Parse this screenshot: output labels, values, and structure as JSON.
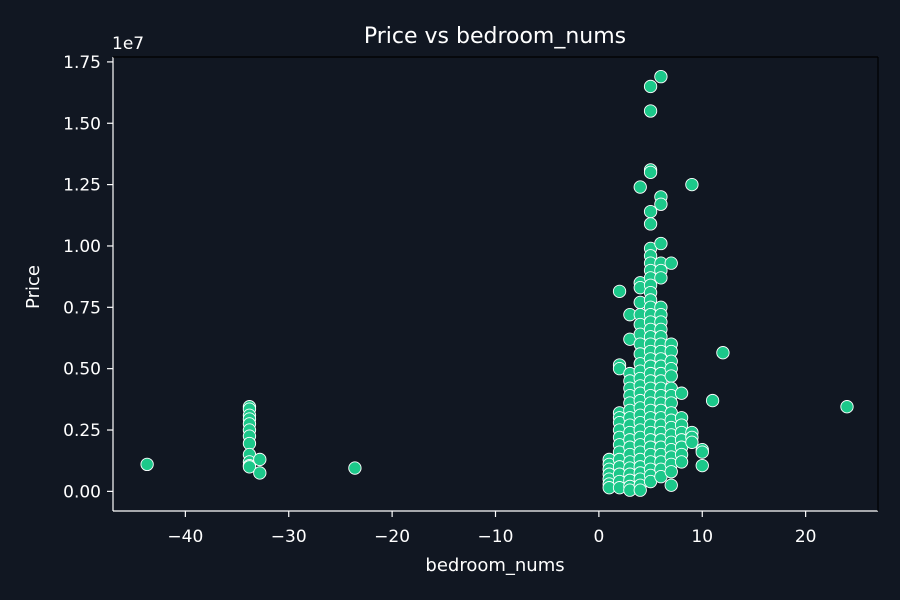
{
  "chart_data": {
    "type": "scatter",
    "title": "Price vs bedroom_nums",
    "xlabel": "bedroom_nums",
    "ylabel": "Price",
    "y_offset_label": "1e7",
    "xlim": [
      -47,
      27
    ],
    "ylim": [
      -800000,
      17700000
    ],
    "x_ticks": [
      -40,
      -30,
      -20,
      -10,
      0,
      10,
      20
    ],
    "x_tick_labels": [
      "−40",
      "−30",
      "−20",
      "−10",
      "0",
      "10",
      "20"
    ],
    "y_ticks": [
      0,
      2500000,
      5000000,
      7500000,
      10000000,
      12500000,
      15000000,
      17500000
    ],
    "y_tick_labels": [
      "0.00",
      "0.25",
      "0.50",
      "0.75",
      "1.00",
      "1.25",
      "1.50",
      "1.75"
    ],
    "grid": false,
    "colors": {
      "background": "#111722",
      "marker": "#1cc88a",
      "marker_edge": "#ffffff",
      "text": "#ffffff"
    },
    "series": [
      {
        "values": [
          [
            -43.7,
            1100000
          ],
          [
            -33.8,
            3450000
          ],
          [
            -33.8,
            3350000
          ],
          [
            -33.8,
            3100000
          ],
          [
            -33.8,
            2950000
          ],
          [
            -33.8,
            2750000
          ],
          [
            -33.8,
            2500000
          ],
          [
            -33.8,
            2250000
          ],
          [
            -33.8,
            1950000
          ],
          [
            -33.8,
            1500000
          ],
          [
            -33.8,
            1200000
          ],
          [
            -33.8,
            1050000
          ],
          [
            -33.8,
            1000000
          ],
          [
            -32.8,
            1300000
          ],
          [
            -32.8,
            750000
          ],
          [
            -23.6,
            950000
          ],
          [
            1,
            1300000
          ],
          [
            1,
            1100000
          ],
          [
            1,
            900000
          ],
          [
            1,
            700000
          ],
          [
            1,
            500000
          ],
          [
            1,
            300000
          ],
          [
            1,
            150000
          ],
          [
            2,
            8150000
          ],
          [
            2,
            5150000
          ],
          [
            2,
            5000000
          ],
          [
            2,
            3200000
          ],
          [
            2,
            3000000
          ],
          [
            2,
            2800000
          ],
          [
            2,
            2500000
          ],
          [
            2,
            2200000
          ],
          [
            2,
            1900000
          ],
          [
            2,
            1600000
          ],
          [
            2,
            1300000
          ],
          [
            2,
            1000000
          ],
          [
            2,
            700000
          ],
          [
            2,
            400000
          ],
          [
            2,
            150000
          ],
          [
            3,
            7200000
          ],
          [
            3,
            6200000
          ],
          [
            3,
            4800000
          ],
          [
            3,
            4500000
          ],
          [
            3,
            4200000
          ],
          [
            3,
            3900000
          ],
          [
            3,
            3600000
          ],
          [
            3,
            3300000
          ],
          [
            3,
            3000000
          ],
          [
            3,
            2700000
          ],
          [
            3,
            2400000
          ],
          [
            3,
            2100000
          ],
          [
            3,
            1800000
          ],
          [
            3,
            1500000
          ],
          [
            3,
            1200000
          ],
          [
            3,
            950000
          ],
          [
            3,
            700000
          ],
          [
            3,
            450000
          ],
          [
            3,
            200000
          ],
          [
            3,
            50000
          ],
          [
            4,
            12400000
          ],
          [
            4,
            8500000
          ],
          [
            4,
            8300000
          ],
          [
            4,
            7700000
          ],
          [
            4,
            7200000
          ],
          [
            4,
            6800000
          ],
          [
            4,
            6400000
          ],
          [
            4,
            6000000
          ],
          [
            4,
            5600000
          ],
          [
            4,
            5200000
          ],
          [
            4,
            4900000
          ],
          [
            4,
            4600000
          ],
          [
            4,
            4300000
          ],
          [
            4,
            4000000
          ],
          [
            4,
            3700000
          ],
          [
            4,
            3400000
          ],
          [
            4,
            3100000
          ],
          [
            4,
            2800000
          ],
          [
            4,
            2500000
          ],
          [
            4,
            2200000
          ],
          [
            4,
            1900000
          ],
          [
            4,
            1600000
          ],
          [
            4,
            1300000
          ],
          [
            4,
            1000000
          ],
          [
            4,
            750000
          ],
          [
            4,
            500000
          ],
          [
            4,
            250000
          ],
          [
            4,
            50000
          ],
          [
            5,
            16500000
          ],
          [
            5,
            15500000
          ],
          [
            5,
            13100000
          ],
          [
            5,
            13000000
          ],
          [
            5,
            11400000
          ],
          [
            5,
            10900000
          ],
          [
            5,
            9900000
          ],
          [
            5,
            9600000
          ],
          [
            5,
            9300000
          ],
          [
            5,
            9000000
          ],
          [
            5,
            8700000
          ],
          [
            5,
            8400000
          ],
          [
            5,
            8100000
          ],
          [
            5,
            7800000
          ],
          [
            5,
            7500000
          ],
          [
            5,
            7200000
          ],
          [
            5,
            6900000
          ],
          [
            5,
            6600000
          ],
          [
            5,
            6300000
          ],
          [
            5,
            6000000
          ],
          [
            5,
            5700000
          ],
          [
            5,
            5400000
          ],
          [
            5,
            5100000
          ],
          [
            5,
            4800000
          ],
          [
            5,
            4500000
          ],
          [
            5,
            4200000
          ],
          [
            5,
            3900000
          ],
          [
            5,
            3600000
          ],
          [
            5,
            3300000
          ],
          [
            5,
            3000000
          ],
          [
            5,
            2700000
          ],
          [
            5,
            2400000
          ],
          [
            5,
            2100000
          ],
          [
            5,
            1800000
          ],
          [
            5,
            1500000
          ],
          [
            5,
            1200000
          ],
          [
            5,
            900000
          ],
          [
            5,
            650000
          ],
          [
            5,
            400000
          ],
          [
            6,
            16900000
          ],
          [
            6,
            12000000
          ],
          [
            6,
            11700000
          ],
          [
            6,
            10100000
          ],
          [
            6,
            9300000
          ],
          [
            6,
            9000000
          ],
          [
            6,
            8700000
          ],
          [
            6,
            7500000
          ],
          [
            6,
            7200000
          ],
          [
            6,
            6900000
          ],
          [
            6,
            6600000
          ],
          [
            6,
            6300000
          ],
          [
            6,
            6000000
          ],
          [
            6,
            5700000
          ],
          [
            6,
            5400000
          ],
          [
            6,
            5100000
          ],
          [
            6,
            4800000
          ],
          [
            6,
            4500000
          ],
          [
            6,
            4200000
          ],
          [
            6,
            3900000
          ],
          [
            6,
            3600000
          ],
          [
            6,
            3300000
          ],
          [
            6,
            3000000
          ],
          [
            6,
            2700000
          ],
          [
            6,
            2400000
          ],
          [
            6,
            2100000
          ],
          [
            6,
            1800000
          ],
          [
            6,
            1500000
          ],
          [
            6,
            1200000
          ],
          [
            6,
            900000
          ],
          [
            6,
            600000
          ],
          [
            7,
            9300000
          ],
          [
            7,
            6000000
          ],
          [
            7,
            5700000
          ],
          [
            7,
            5300000
          ],
          [
            7,
            5000000
          ],
          [
            7,
            4700000
          ],
          [
            7,
            4200000
          ],
          [
            7,
            3900000
          ],
          [
            7,
            3600000
          ],
          [
            7,
            3200000
          ],
          [
            7,
            2900000
          ],
          [
            7,
            2600000
          ],
          [
            7,
            2300000
          ],
          [
            7,
            2000000
          ],
          [
            7,
            1700000
          ],
          [
            7,
            1400000
          ],
          [
            7,
            1100000
          ],
          [
            7,
            800000
          ],
          [
            7,
            250000
          ],
          [
            8,
            4000000
          ],
          [
            8,
            3000000
          ],
          [
            8,
            2700000
          ],
          [
            8,
            2400000
          ],
          [
            8,
            2100000
          ],
          [
            8,
            1800000
          ],
          [
            8,
            1500000
          ],
          [
            8,
            1200000
          ],
          [
            9,
            12500000
          ],
          [
            9,
            2400000
          ],
          [
            9,
            2200000
          ],
          [
            9,
            2000000
          ],
          [
            10,
            1700000
          ],
          [
            10,
            1600000
          ],
          [
            10,
            1050000
          ],
          [
            11,
            3700000
          ],
          [
            12,
            5650000
          ],
          [
            24,
            3450000
          ]
        ]
      }
    ]
  }
}
